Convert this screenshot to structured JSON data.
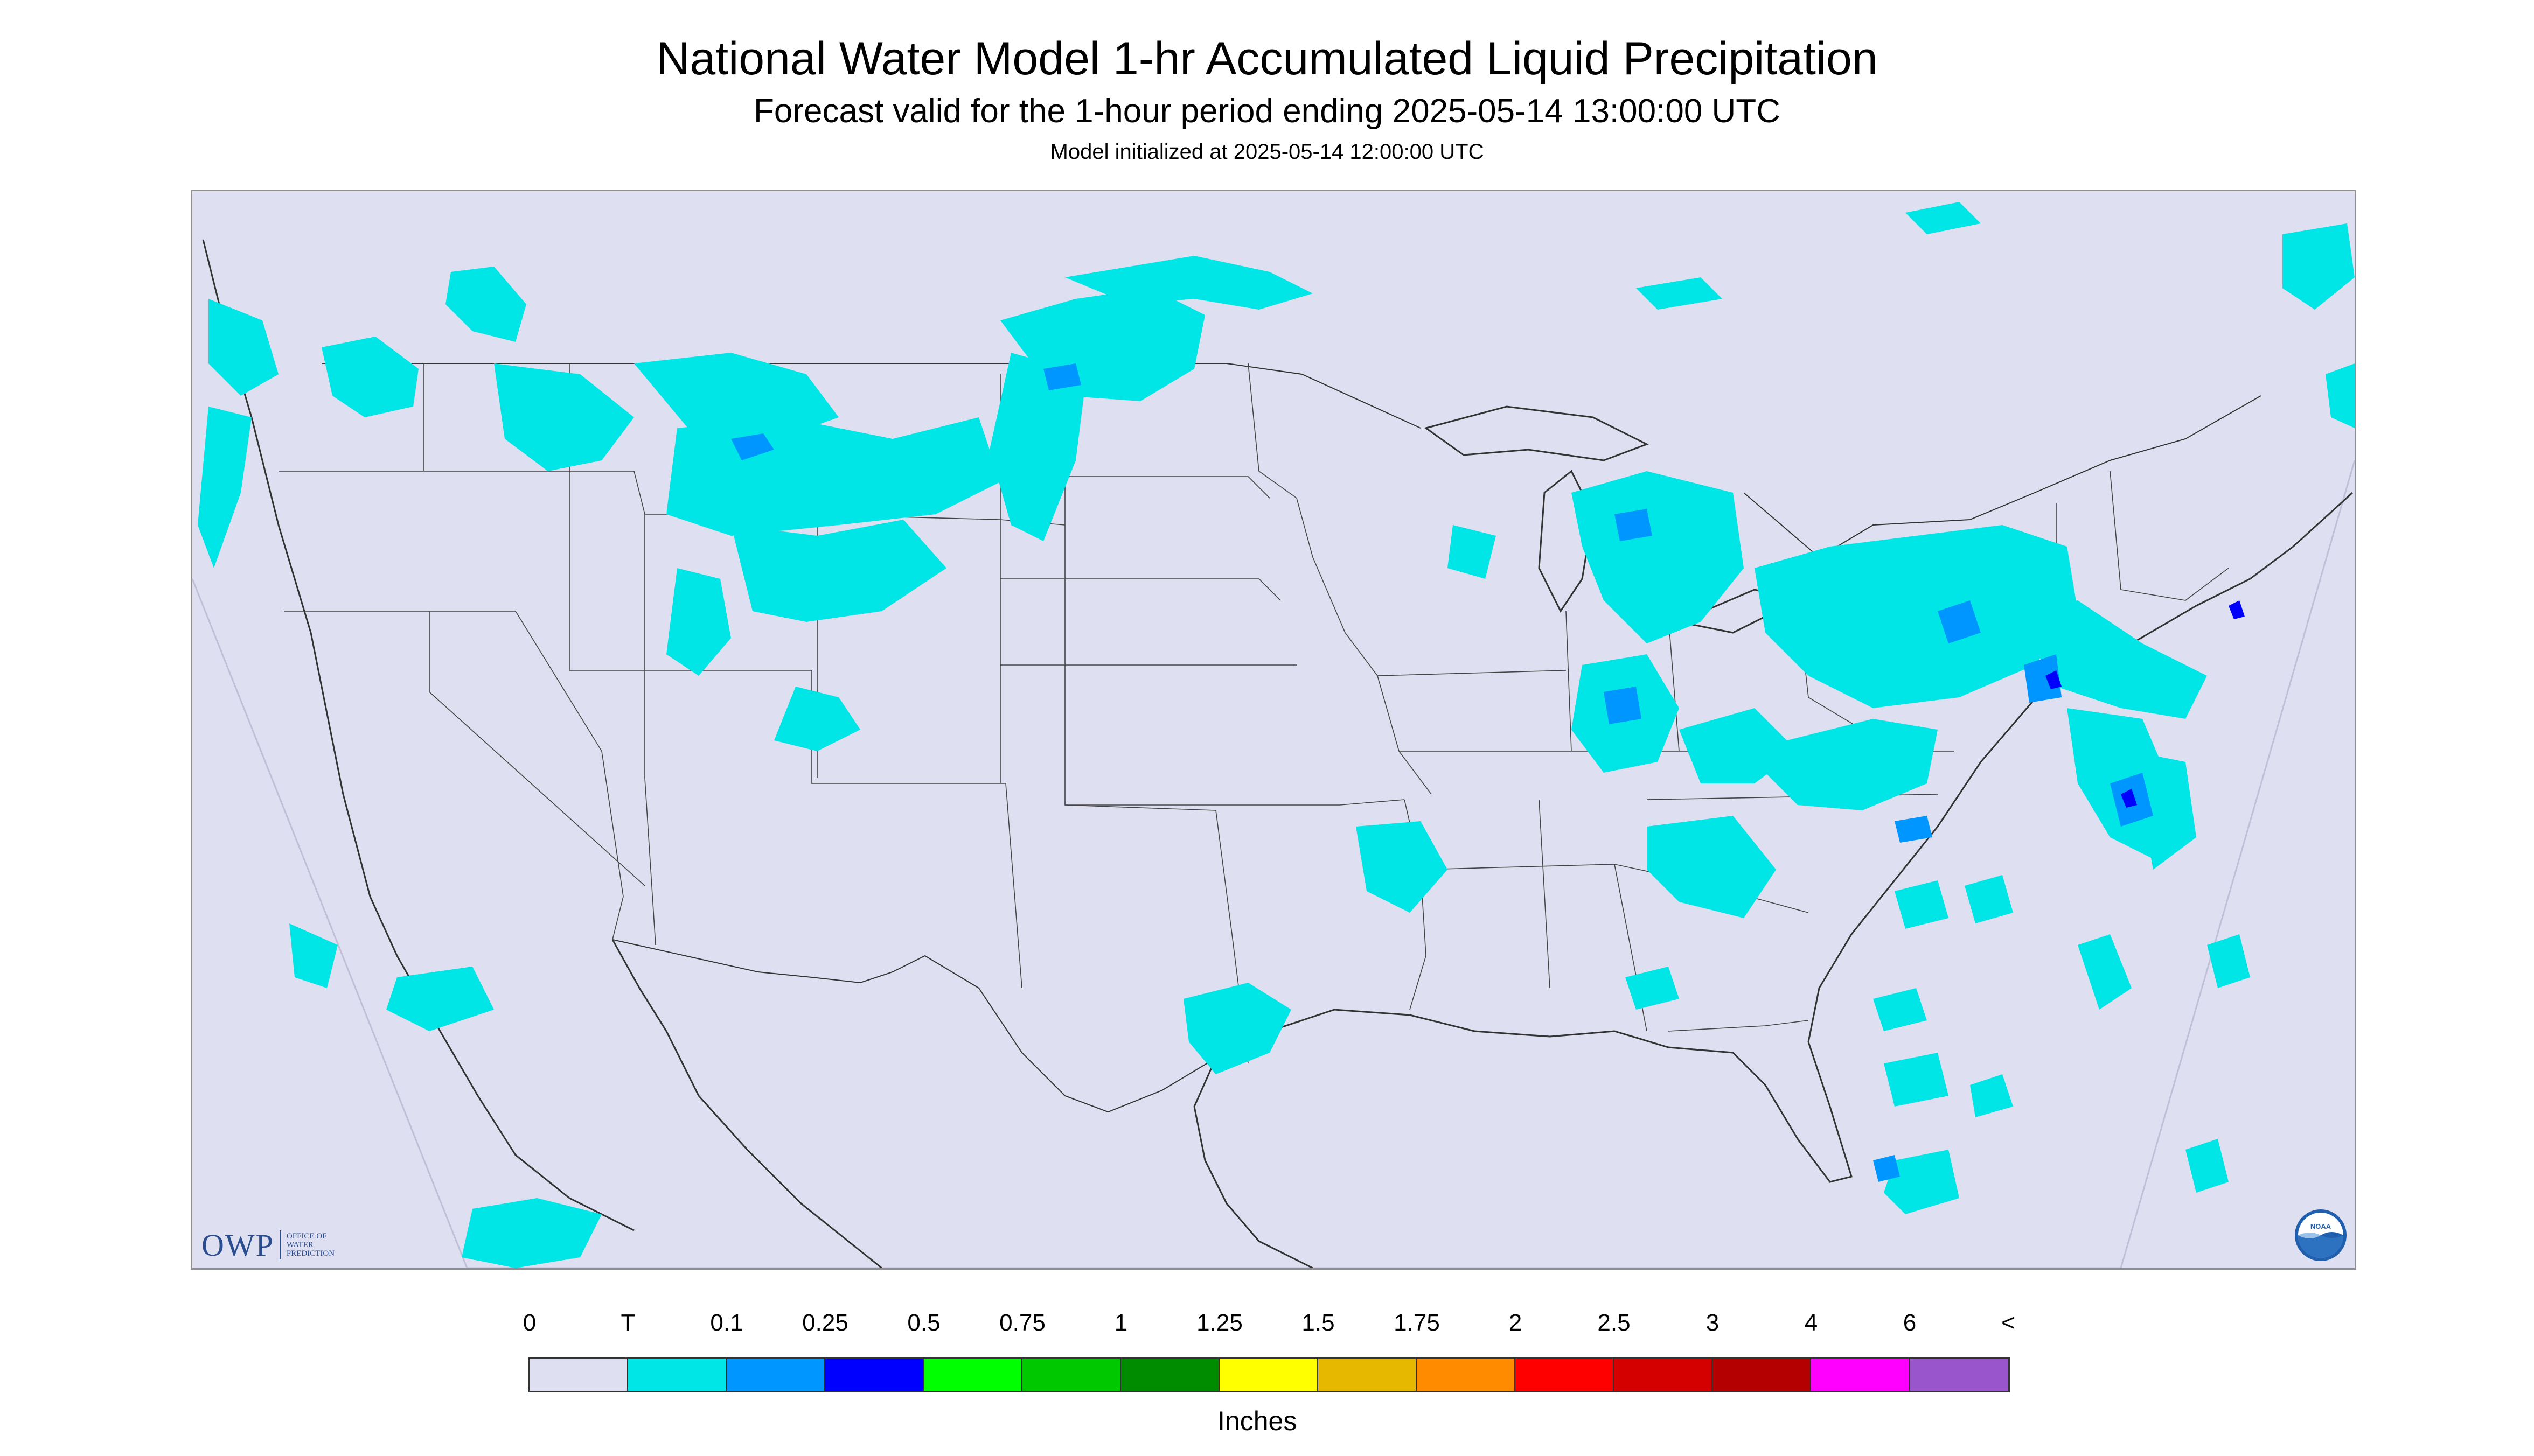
{
  "title": "National Water Model 1-hr Accumulated Liquid Precipitation",
  "subtitle": "Forecast valid for the 1-hour period ending 2025-05-14 13:00:00 UTC",
  "init_line": "Model initialized at 2025-05-14 12:00:00 UTC",
  "logos": {
    "owp_abbrev": "OWP",
    "owp_name_lines": [
      "OFFICE OF",
      "WATER",
      "PREDICTION"
    ],
    "noaa_text": "NOAA"
  },
  "legend": {
    "ticks": [
      "0",
      "T",
      "0.1",
      "0.25",
      "0.5",
      "0.75",
      "1",
      "1.25",
      "1.5",
      "1.75",
      "2",
      "2.5",
      "3",
      "4",
      "6",
      "<"
    ],
    "colors": [
      "#dedff0",
      "#00e5e5",
      "#0096ff",
      "#0000ff",
      "#00ff00",
      "#00c800",
      "#008c00",
      "#ffff00",
      "#e6b800",
      "#ff8c00",
      "#ff0000",
      "#d40000",
      "#b40000",
      "#ff00ff",
      "#9955cc"
    ],
    "unit_label": "Inches"
  },
  "map_colors": {
    "background": "#dedff0",
    "trace": "#00e5e5",
    "light": "#0096ff",
    "heavy": "#0000ff",
    "borders": "#333333"
  }
}
